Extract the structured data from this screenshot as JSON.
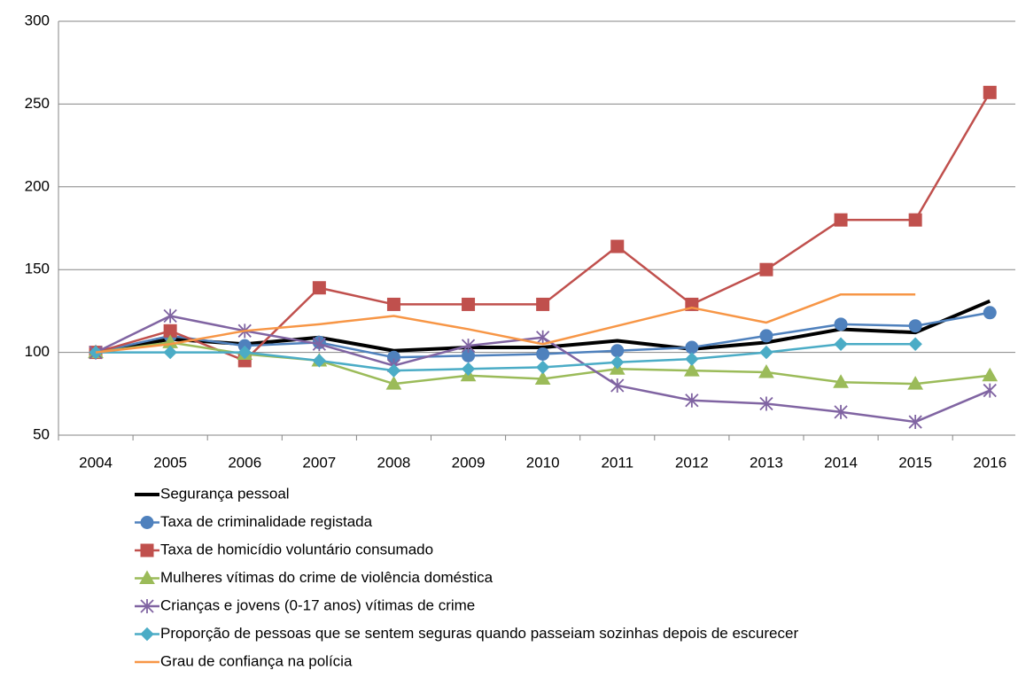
{
  "chart_data": {
    "type": "line",
    "categories": [
      "2004",
      "2005",
      "2006",
      "2007",
      "2008",
      "2009",
      "2010",
      "2011",
      "2012",
      "2013",
      "2014",
      "2015",
      "2016"
    ],
    "ylim": [
      50,
      300
    ],
    "yticks": [
      50,
      100,
      150,
      200,
      250,
      300
    ],
    "grid": true,
    "legend": "bottom",
    "series": [
      {
        "name": "Segurança pessoal",
        "color": "#000000",
        "marker": "none",
        "width": 4,
        "values": [
          100,
          108,
          105,
          109,
          101,
          103,
          103,
          107,
          102,
          106,
          114,
          112,
          131
        ]
      },
      {
        "name": "Taxa de criminalidade registada",
        "color": "#4f81bd",
        "marker": "circle",
        "width": 2.5,
        "values": [
          100,
          110,
          104,
          106,
          97,
          98,
          99,
          101,
          103,
          110,
          117,
          116,
          124
        ]
      },
      {
        "name": "Taxa de homicídio voluntário consumado",
        "color": "#c0504d",
        "marker": "square",
        "width": 2.5,
        "values": [
          100,
          113,
          95,
          139,
          129,
          129,
          129,
          164,
          129,
          150,
          180,
          180,
          257
        ]
      },
      {
        "name": "Mulheres vítimas do crime de violência doméstica",
        "color": "#9bbb59",
        "marker": "triangle",
        "width": 2.5,
        "values": [
          100,
          106,
          99,
          95,
          81,
          86,
          84,
          90,
          89,
          88,
          82,
          81,
          86
        ]
      },
      {
        "name": "Crianças e jovens (0-17 anos) vítimas de crime",
        "color": "#8064a2",
        "marker": "star",
        "width": 2.5,
        "values": [
          100,
          122,
          113,
          105,
          92,
          104,
          109,
          80,
          71,
          69,
          64,
          58,
          77
        ]
      },
      {
        "name": "Proporção de pessoas que se sentem seguras quando passeiam sozinhas depois de escurecer",
        "color": "#4bacc6",
        "marker": "diamond",
        "width": 2.5,
        "values": [
          100,
          100,
          100,
          95,
          89,
          90,
          91,
          94,
          96,
          100,
          105,
          105,
          null
        ]
      },
      {
        "name": "Grau de confiança na polícia",
        "color": "#f79646",
        "marker": "none",
        "width": 2.5,
        "values": [
          100,
          105,
          113,
          117,
          122,
          114,
          105,
          116,
          127,
          118,
          135,
          135,
          null
        ]
      }
    ]
  }
}
